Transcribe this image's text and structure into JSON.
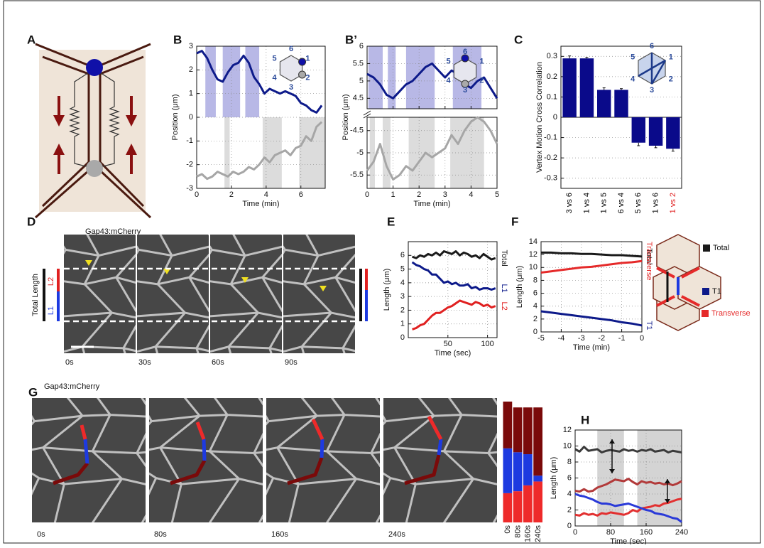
{
  "figure": {
    "panel_labels": {
      "A": "A",
      "D": "D",
      "G": "G"
    },
    "d_stain": "Gap43:mCherry",
    "d_side": [
      "Total Length",
      "L2",
      "L1"
    ],
    "d_times": [
      "0s",
      "30s",
      "60s",
      "90s"
    ],
    "g_stain": "Gap43:mCherry",
    "g_times": [
      "0s",
      "80s",
      "160s",
      "240s"
    ]
  },
  "chart_data": [
    {
      "type": "line",
      "title": "B",
      "xlabel": "Time (min)",
      "ylabel": "Position (μm)",
      "grid": true,
      "xlim": [
        0,
        7.4
      ],
      "xticks": [
        0,
        2,
        4,
        6
      ],
      "ylim": [
        -3,
        3
      ],
      "yticks": [
        -3,
        -2,
        -1,
        0,
        1,
        2,
        3
      ],
      "inset_labels": [
        "1",
        "2",
        "3",
        "4",
        "5",
        "6"
      ],
      "x": [
        0,
        0.3,
        0.6,
        0.9,
        1.2,
        1.5,
        1.8,
        2.1,
        2.4,
        2.7,
        3.0,
        3.3,
        3.6,
        3.9,
        4.2,
        4.5,
        4.8,
        5.1,
        5.4,
        5.7,
        6.0,
        6.3,
        6.6,
        6.9,
        7.2
      ],
      "spans": [
        {
          "x": [
            0.5,
            1.1
          ],
          "y": [
            0,
            3
          ],
          "color": "#b8b8e6"
        },
        {
          "x": [
            1.5,
            2.5
          ],
          "y": [
            0,
            3
          ],
          "color": "#b8b8e6"
        },
        {
          "x": [
            2.8,
            3.6
          ],
          "y": [
            0,
            3
          ],
          "color": "#b8b8e6"
        },
        {
          "x": [
            1.6,
            1.9
          ],
          "y": [
            -3,
            0
          ],
          "color": "#dcdcdc"
        },
        {
          "x": [
            3.8,
            4.9
          ],
          "y": [
            -3,
            0
          ],
          "color": "#dcdcdc"
        },
        {
          "x": [
            5.9,
            7.4
          ],
          "y": [
            -3,
            0
          ],
          "color": "#dcdcdc"
        }
      ],
      "series": [
        {
          "color": "#0d1a8a",
          "values": [
            2.7,
            2.8,
            2.5,
            2.0,
            1.6,
            1.5,
            1.9,
            2.2,
            2.3,
            2.6,
            2.3,
            1.7,
            1.4,
            1.0,
            1.2,
            1.1,
            1.0,
            1.1,
            1.0,
            0.9,
            0.6,
            0.5,
            0.3,
            0.2,
            0.5
          ]
        },
        {
          "color": "#a6a6a6",
          "values": [
            -2.5,
            -2.4,
            -2.6,
            -2.5,
            -2.3,
            -2.4,
            -2.5,
            -2.3,
            -2.4,
            -2.3,
            -2.1,
            -2.2,
            -2.0,
            -1.7,
            -1.9,
            -1.6,
            -1.5,
            -1.4,
            -1.6,
            -1.3,
            -1.2,
            -0.8,
            -1.0,
            -0.4,
            -0.2
          ]
        }
      ]
    },
    {
      "type": "line",
      "title": "B’",
      "xlabel": "Time (min)",
      "ylabel": "Position (μm)",
      "grid": true,
      "xlim": [
        0,
        5
      ],
      "xticks": [
        0,
        1,
        2,
        3,
        4,
        5
      ],
      "ylim": [
        4.2,
        6
      ],
      "yticks": [
        4.5,
        5,
        5.5,
        6
      ],
      "y2lim": [
        -5.8,
        -4.2
      ],
      "y2ticks": [
        -5.5,
        -5,
        -4.5
      ],
      "inset_labels": [
        "1",
        "2",
        "3",
        "4",
        "5",
        "6"
      ],
      "x": [
        0,
        0.25,
        0.5,
        0.75,
        1,
        1.25,
        1.5,
        1.75,
        2,
        2.25,
        2.5,
        2.75,
        3,
        3.25,
        3.5,
        3.75,
        4,
        4.25,
        4.5,
        4.75,
        5
      ],
      "spans": [
        {
          "x": [
            0.05,
            0.6
          ],
          "y": [
            4.2,
            6
          ],
          "color": "#b8b8e6"
        },
        {
          "x": [
            0.8,
            1.1
          ],
          "y": [
            4.2,
            6
          ],
          "color": "#b8b8e6"
        },
        {
          "x": [
            1.5,
            2.6
          ],
          "y": [
            4.2,
            6
          ],
          "color": "#b8b8e6"
        },
        {
          "x": [
            3.3,
            4.4
          ],
          "y": [
            4.2,
            6
          ],
          "color": "#b8b8e6"
        },
        {
          "x": [
            0.1,
            0.3
          ],
          "y": [
            -5.8,
            -4.2
          ],
          "color": "#dcdcdc",
          "axis": "y2"
        },
        {
          "x": [
            0.6,
            0.9
          ],
          "y": [
            -5.8,
            -4.2
          ],
          "color": "#dcdcdc",
          "axis": "y2"
        },
        {
          "x": [
            1.6,
            2.6
          ],
          "y": [
            -5.8,
            -4.2
          ],
          "color": "#dcdcdc",
          "axis": "y2"
        },
        {
          "x": [
            3.2,
            4.5
          ],
          "y": [
            -5.8,
            -4.2
          ],
          "color": "#dcdcdc",
          "axis": "y2"
        }
      ],
      "series": [
        {
          "color": "#0d1a8a",
          "values": [
            5.2,
            5.1,
            4.9,
            4.6,
            4.5,
            4.7,
            4.9,
            5.0,
            5.2,
            5.4,
            5.5,
            5.3,
            5.1,
            5.3,
            5.2,
            4.9,
            4.8,
            5.0,
            5.1,
            4.8,
            4.5
          ]
        },
        {
          "color": "#a6a6a6",
          "axis": "y2",
          "values": [
            -5.4,
            -5.2,
            -4.8,
            -5.3,
            -5.6,
            -5.5,
            -5.3,
            -5.4,
            -5.2,
            -5.0,
            -5.1,
            -5.0,
            -4.9,
            -4.6,
            -4.8,
            -4.5,
            -4.3,
            -4.2,
            -4.3,
            -4.5,
            -4.8
          ]
        }
      ]
    },
    {
      "type": "bar",
      "title": "C",
      "ylabel": "Vertex Motion Cross Correlation",
      "grid": true,
      "categories": [
        "3 vs 6",
        "1 vs 4",
        "1 vs 5",
        "6 vs 4",
        "5 vs 6",
        "1 vs 6",
        "1 vs 2"
      ],
      "category_colors": [
        "#000000",
        "#000000",
        "#000000",
        "#000000",
        "#000000",
        "#000000",
        "#e02020"
      ],
      "values": [
        0.29,
        0.29,
        0.135,
        0.135,
        -0.125,
        -0.14,
        -0.155
      ],
      "errors": [
        0.012,
        0.005,
        0.01,
        0.006,
        0.015,
        0.01,
        0.012
      ],
      "color": "#0a0a8a",
      "ylim": [
        -0.35,
        0.35
      ],
      "yticks": [
        -0.3,
        -0.2,
        -0.1,
        0,
        0.1,
        0.2,
        0.3
      ],
      "inset_labels": [
        "1",
        "2",
        "3",
        "4",
        "5",
        "6"
      ]
    },
    {
      "type": "line",
      "title": "E",
      "xlabel": "Time (sec)",
      "ylabel": "Length (μm)",
      "grid": true,
      "names_right": true,
      "xlim": [
        0,
        112
      ],
      "xticks": [
        50,
        100
      ],
      "ylim": [
        0,
        7
      ],
      "yticks": [
        0,
        1,
        2,
        3,
        4,
        5,
        6
      ],
      "x": [
        5,
        10,
        15,
        20,
        25,
        30,
        35,
        40,
        45,
        50,
        55,
        60,
        65,
        70,
        75,
        80,
        85,
        90,
        95,
        100,
        105,
        110
      ],
      "series": [
        {
          "name": "Total",
          "color": "#1a1a1a",
          "values": [
            5.9,
            5.8,
            6.0,
            5.9,
            6.1,
            6.0,
            6.2,
            6.0,
            6.3,
            6.2,
            6.1,
            6.3,
            6.0,
            6.2,
            6.1,
            5.9,
            6.0,
            5.8,
            6.1,
            5.9,
            5.7,
            5.8
          ]
        },
        {
          "name": "L1",
          "color": "#0d1a8a",
          "values": [
            5.5,
            5.3,
            5.2,
            5.0,
            4.9,
            4.6,
            4.6,
            4.3,
            4.0,
            4.1,
            3.9,
            4.0,
            3.8,
            3.8,
            3.9,
            3.6,
            3.7,
            3.5,
            3.6,
            3.6,
            3.5,
            3.6
          ]
        },
        {
          "name": "L2",
          "color": "#e02020",
          "values": [
            0.6,
            0.7,
            0.9,
            1.0,
            1.3,
            1.6,
            1.8,
            1.8,
            2.0,
            2.2,
            2.3,
            2.5,
            2.7,
            2.6,
            2.5,
            2.4,
            2.6,
            2.5,
            2.3,
            2.4,
            2.2,
            2.3
          ]
        }
      ]
    },
    {
      "type": "line",
      "title": "F",
      "xlabel": "Time (min)",
      "ylabel": "Length (μm)",
      "grid": true,
      "names_right": true,
      "legend": true,
      "xlim": [
        -5,
        0
      ],
      "xticks": [
        -5,
        -4,
        -3,
        -2,
        -1,
        0
      ],
      "ylim": [
        0,
        14
      ],
      "yticks": [
        0,
        2,
        4,
        6,
        8,
        10,
        12,
        14
      ],
      "x": [
        -5,
        -4.5,
        -4,
        -3.5,
        -3,
        -2.5,
        -2,
        -1.5,
        -1,
        -0.5,
        0
      ],
      "series": [
        {
          "name": "Total",
          "color": "#1a1a1a",
          "values": [
            12.3,
            12.3,
            12.2,
            12.2,
            12.1,
            12.1,
            12.0,
            11.9,
            11.9,
            11.8,
            11.7
          ]
        },
        {
          "name": "Transverse",
          "color": "#e52a2a",
          "values": [
            9.2,
            9.4,
            9.6,
            9.8,
            10.0,
            10.1,
            10.3,
            10.5,
            10.7,
            10.8,
            11.0
          ]
        },
        {
          "name": "T1",
          "color": "#0d1a8a",
          "values": [
            3.2,
            3.0,
            2.8,
            2.6,
            2.4,
            2.2,
            2.0,
            1.8,
            1.5,
            1.3,
            1.0
          ]
        }
      ]
    },
    {
      "type": "stacked_bar",
      "categories": [
        "0s",
        "80s",
        "160s",
        "240s"
      ],
      "series": [
        {
          "color": "#ee2a2a",
          "values": [
            1.5,
            1.6,
            1.9,
            2.1
          ]
        },
        {
          "color": "#1d3ae0",
          "values": [
            2.3,
            2.0,
            1.6,
            0.3
          ]
        },
        {
          "color": "#7a0a0a",
          "values": [
            2.4,
            2.3,
            2.4,
            3.5
          ]
        }
      ]
    },
    {
      "type": "line",
      "title": "H",
      "xlabel": "Time (sec)",
      "ylabel": "Length (μm)",
      "grid": true,
      "xlim": [
        0,
        240
      ],
      "xticks": [
        0,
        80,
        160,
        240
      ],
      "ylim": [
        0,
        12
      ],
      "yticks": [
        0,
        2,
        4,
        6,
        8,
        10,
        12
      ],
      "x": [
        0,
        10,
        20,
        30,
        40,
        50,
        60,
        70,
        80,
        90,
        100,
        110,
        120,
        130,
        140,
        150,
        160,
        170,
        180,
        190,
        200,
        210,
        220,
        230,
        240
      ],
      "spans": [
        {
          "x": [
            50,
            110
          ],
          "y": [
            0,
            12
          ],
          "color": "#d4d4d4"
        },
        {
          "x": [
            140,
            240
          ],
          "y": [
            0,
            12
          ],
          "color": "#d4d4d4"
        }
      ],
      "series": [
        {
          "color": "#3a3a3a",
          "values": [
            9.6,
            9.3,
            9.9,
            9.4,
            9.5,
            9.6,
            9.2,
            9.4,
            9.5,
            9.4,
            9.3,
            9.6,
            9.4,
            9.5,
            9.3,
            9.5,
            9.4,
            9.6,
            9.3,
            9.4,
            9.5,
            9.2,
            9.4,
            9.3,
            9.2
          ]
        },
        {
          "color": "#b23a3a",
          "values": [
            4.4,
            4.3,
            4.6,
            4.3,
            4.4,
            4.8,
            5.0,
            5.2,
            5.5,
            5.8,
            5.7,
            5.6,
            5.9,
            5.5,
            5.2,
            5.6,
            5.4,
            5.5,
            5.3,
            5.4,
            5.2,
            5.3,
            5.1,
            5.3,
            5.6
          ]
        },
        {
          "color": "#e23030",
          "values": [
            1.4,
            1.3,
            1.6,
            1.4,
            1.5,
            1.3,
            1.6,
            1.5,
            1.7,
            1.6,
            1.5,
            1.4,
            1.6,
            2.0,
            1.8,
            2.2,
            2.3,
            2.4,
            2.6,
            2.5,
            2.8,
            2.9,
            3.1,
            3.3,
            3.4
          ]
        },
        {
          "color": "#2a3ad8",
          "values": [
            4.0,
            3.8,
            3.7,
            3.5,
            3.3,
            3.0,
            2.8,
            2.8,
            2.7,
            2.5,
            2.6,
            2.7,
            2.8,
            2.6,
            2.4,
            2.2,
            2.0,
            1.9,
            1.6,
            1.5,
            1.4,
            1.2,
            1.0,
            0.9,
            0.5
          ]
        }
      ]
    }
  ]
}
